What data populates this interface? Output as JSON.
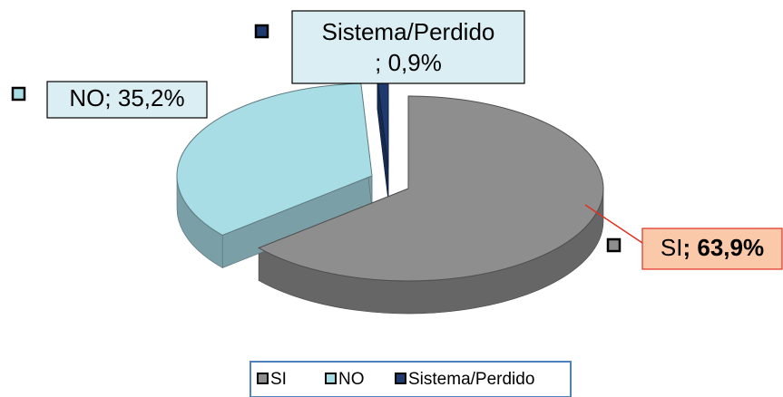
{
  "chart_data": {
    "type": "pie",
    "categories": [
      "SI",
      "NO",
      "Sistema/Perdido"
    ],
    "values": [
      63.9,
      35.2,
      0.9
    ],
    "value_labels": [
      "63,9%",
      "35,2%",
      "0,9%"
    ],
    "label_separator": "; ",
    "colors": [
      "#8e8e8e",
      "#a9dde6",
      "#1f3a6e"
    ],
    "legend": "bottom"
  }
}
